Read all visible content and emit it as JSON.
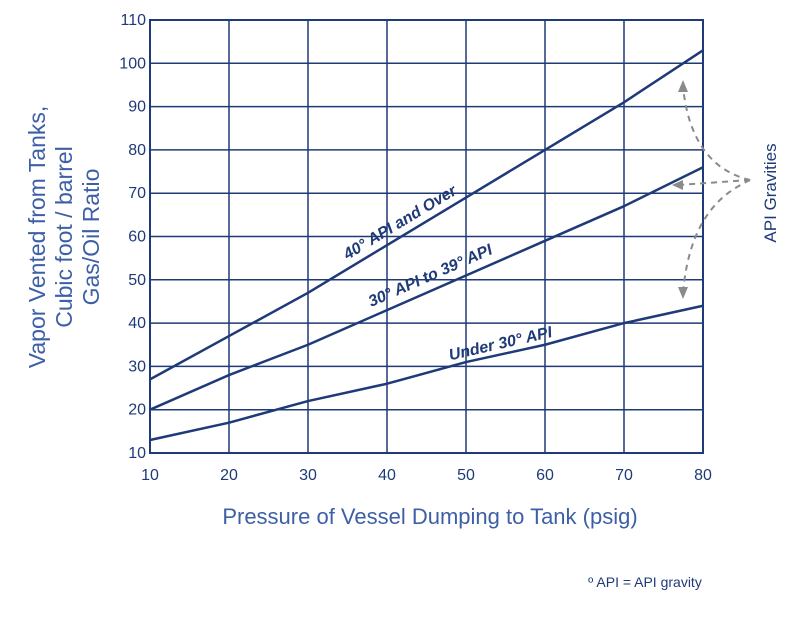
{
  "colors": {
    "line": "#1f3a78",
    "grid": "#1f3a78",
    "axis_text": "#1f3a78",
    "title_text": "#3d5fa6",
    "arrows": "#8a8a8a"
  },
  "chart_data": {
    "type": "line",
    "xlabel": "Pressure of Vessel Dumping to Tank  (psig)",
    "ylabel": [
      "Vapor Vented from Tanks,",
      "Cubic foot / barrel",
      "Gas/Oil Ratio"
    ],
    "xlim": [
      10,
      80
    ],
    "ylim": [
      10,
      110
    ],
    "xticks": [
      10,
      20,
      30,
      40,
      50,
      60,
      70,
      80
    ],
    "yticks": [
      10,
      20,
      30,
      40,
      50,
      60,
      70,
      80,
      90,
      100,
      110
    ],
    "grid": true,
    "series": [
      {
        "name": "40° API and Over",
        "x": [
          10,
          20,
          30,
          40,
          50,
          60,
          70,
          80
        ],
        "y": [
          27,
          37,
          47,
          58,
          69,
          80,
          91,
          103
        ]
      },
      {
        "name": "30° API to 39° API",
        "x": [
          10,
          20,
          30,
          40,
          50,
          60,
          70,
          80
        ],
        "y": [
          20,
          28,
          35,
          43,
          51,
          59,
          67,
          76
        ]
      },
      {
        "name": "Under 30° API",
        "x": [
          10,
          20,
          30,
          40,
          50,
          60,
          70,
          80
        ],
        "y": [
          13,
          17,
          22,
          26,
          31,
          35,
          40,
          44
        ]
      }
    ],
    "annotation": "API Gravities",
    "footnote": "º API = API gravity"
  }
}
